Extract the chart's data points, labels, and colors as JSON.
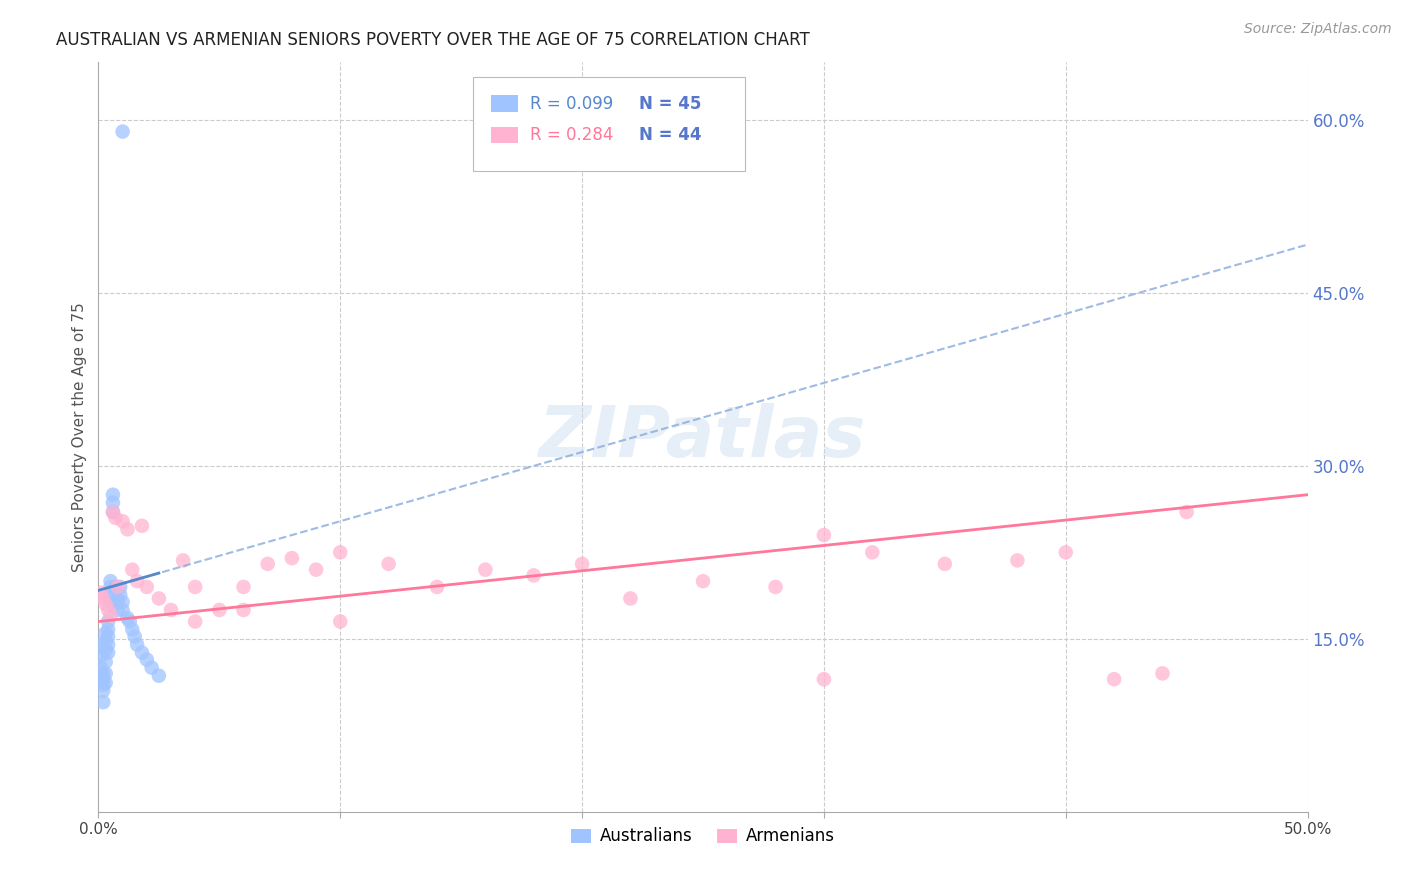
{
  "title": "AUSTRALIAN VS ARMENIAN SENIORS POVERTY OVER THE AGE OF 75 CORRELATION CHART",
  "source": "Source: ZipAtlas.com",
  "ylabel": "Seniors Poverty Over the Age of 75",
  "xlim": [
    0.0,
    0.5
  ],
  "ylim": [
    0.0,
    0.65
  ],
  "xticks": [
    0.0,
    0.1,
    0.2,
    0.3,
    0.4,
    0.5
  ],
  "yticks_right": [
    0.15,
    0.3,
    0.45,
    0.6
  ],
  "ytick_labels_right": [
    "15.0%",
    "30.0%",
    "45.0%",
    "60.0%"
  ],
  "xtick_labels": [
    "0.0%",
    "",
    "",
    "",
    "",
    "50.0%"
  ],
  "aus_color": "#a0c4ff",
  "arm_color": "#ffb3d1",
  "aus_line_color": "#5588cc",
  "arm_line_color": "#ff7799",
  "aus_dash_color": "#88aadd",
  "background_color": "#ffffff",
  "grid_color": "#cccccc",
  "title_color": "#222222",
  "right_axis_color": "#5577cc",
  "watermark": "ZIPatlas",
  "aus_intercept": 0.192,
  "aus_slope": 0.6,
  "arm_intercept": 0.165,
  "arm_slope": 0.22,
  "australians_x": [
    0.001,
    0.001,
    0.001,
    0.001,
    0.002,
    0.002,
    0.002,
    0.002,
    0.002,
    0.003,
    0.003,
    0.003,
    0.003,
    0.003,
    0.003,
    0.004,
    0.004,
    0.004,
    0.004,
    0.004,
    0.005,
    0.005,
    0.005,
    0.005,
    0.006,
    0.006,
    0.006,
    0.007,
    0.007,
    0.008,
    0.008,
    0.009,
    0.009,
    0.01,
    0.01,
    0.012,
    0.013,
    0.014,
    0.015,
    0.016,
    0.018,
    0.02,
    0.022,
    0.025,
    0.01
  ],
  "australians_y": [
    0.145,
    0.135,
    0.125,
    0.115,
    0.12,
    0.115,
    0.11,
    0.105,
    0.095,
    0.155,
    0.148,
    0.14,
    0.13,
    0.12,
    0.112,
    0.165,
    0.158,
    0.152,
    0.145,
    0.138,
    0.2,
    0.195,
    0.188,
    0.182,
    0.275,
    0.268,
    0.26,
    0.195,
    0.188,
    0.182,
    0.175,
    0.195,
    0.188,
    0.182,
    0.175,
    0.168,
    0.165,
    0.158,
    0.152,
    0.145,
    0.138,
    0.132,
    0.125,
    0.118,
    0.59
  ],
  "armenians_x": [
    0.001,
    0.002,
    0.003,
    0.004,
    0.005,
    0.006,
    0.007,
    0.008,
    0.01,
    0.012,
    0.014,
    0.016,
    0.018,
    0.02,
    0.025,
    0.03,
    0.035,
    0.04,
    0.05,
    0.06,
    0.07,
    0.08,
    0.09,
    0.1,
    0.12,
    0.14,
    0.16,
    0.18,
    0.2,
    0.22,
    0.25,
    0.28,
    0.3,
    0.32,
    0.35,
    0.38,
    0.4,
    0.42,
    0.44,
    0.45,
    0.04,
    0.06,
    0.1,
    0.3
  ],
  "armenians_y": [
    0.19,
    0.185,
    0.18,
    0.175,
    0.17,
    0.26,
    0.255,
    0.195,
    0.252,
    0.245,
    0.21,
    0.2,
    0.248,
    0.195,
    0.185,
    0.175,
    0.218,
    0.195,
    0.175,
    0.195,
    0.215,
    0.22,
    0.21,
    0.225,
    0.215,
    0.195,
    0.21,
    0.205,
    0.215,
    0.185,
    0.2,
    0.195,
    0.24,
    0.225,
    0.215,
    0.218,
    0.225,
    0.115,
    0.12,
    0.26,
    0.165,
    0.175,
    0.165,
    0.115
  ]
}
